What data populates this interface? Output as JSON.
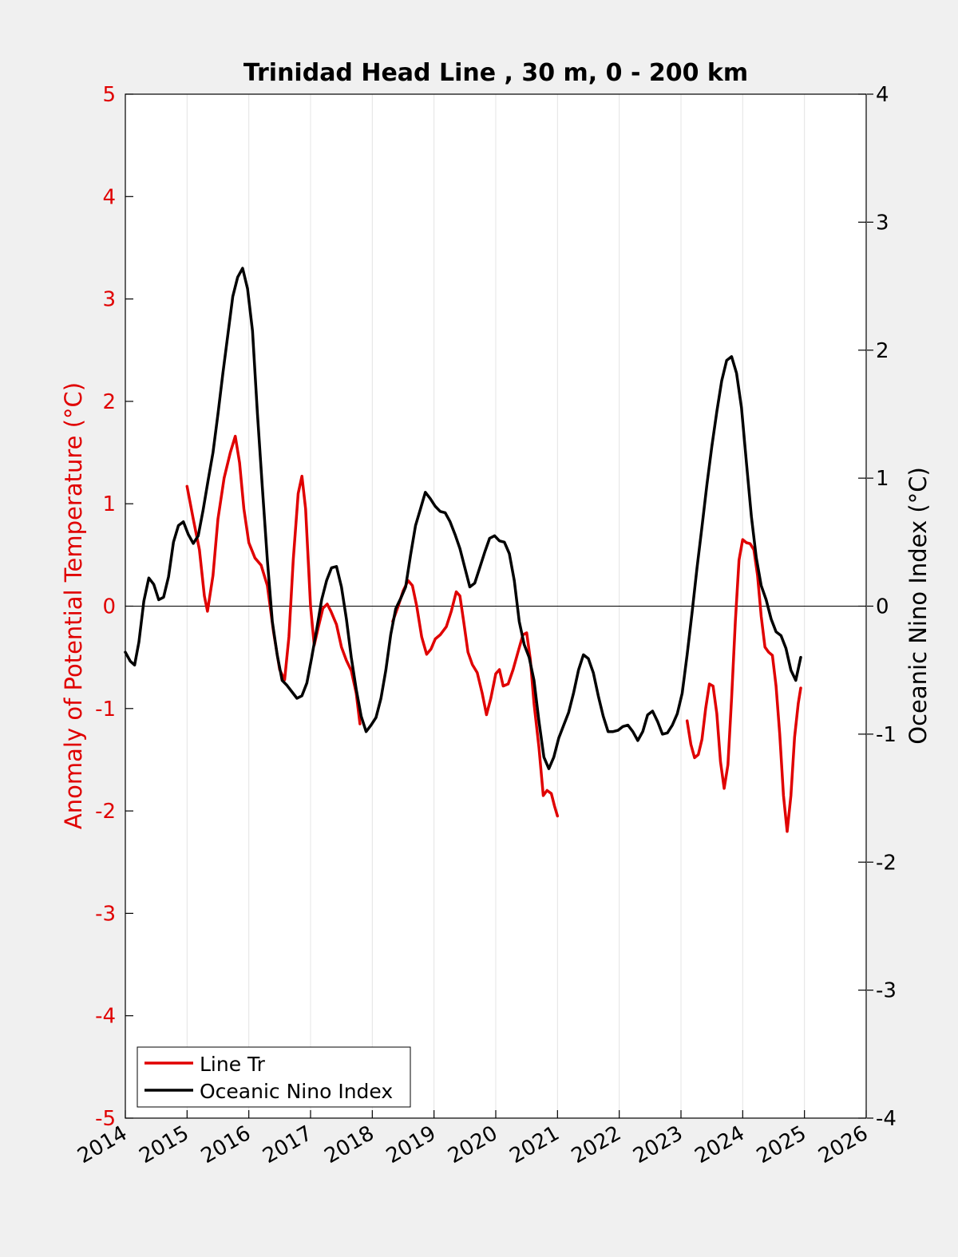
{
  "chart_data": {
    "type": "line",
    "title": "Trinidad Head Line , 30 m, 0 - 200 km",
    "xlabel": "",
    "ylabel_left": "Anomaly of Potential Temperature (°C)",
    "ylabel_right": "Oceanic Nino Index (°C)",
    "xlim": [
      2014,
      2026
    ],
    "ylim_left": [
      -5,
      5
    ],
    "ylim_right": [
      -4,
      4
    ],
    "xticks": [
      2014,
      2015,
      2016,
      2017,
      2018,
      2019,
      2020,
      2021,
      2022,
      2023,
      2024,
      2025,
      2026
    ],
    "yticks_left": [
      -5,
      -4,
      -3,
      -2,
      -1,
      0,
      1,
      2,
      3,
      4,
      5
    ],
    "yticks_right": [
      -4,
      -3,
      -2,
      -1,
      0,
      1,
      2,
      3,
      4
    ],
    "grid": "vertical",
    "zero_line": true,
    "legend_position": "bottom-left",
    "colors": {
      "left_axis": "#e00000",
      "line_tr": "#e00000",
      "oni": "#000000",
      "frame": "#000000"
    },
    "series": [
      {
        "name": "Line Tr",
        "axis": "left",
        "color": "#e00000",
        "segments": [
          [
            [
              2015.0,
              1.17
            ],
            [
              2015.1,
              0.85
            ],
            [
              2015.2,
              0.55
            ],
            [
              2015.28,
              0.1
            ],
            [
              2015.33,
              -0.05
            ],
            [
              2015.42,
              0.3
            ],
            [
              2015.5,
              0.85
            ],
            [
              2015.6,
              1.25
            ],
            [
              2015.7,
              1.5
            ],
            [
              2015.78,
              1.66
            ],
            [
              2015.85,
              1.4
            ],
            [
              2015.92,
              0.95
            ],
            [
              2016.0,
              0.62
            ],
            [
              2016.1,
              0.47
            ],
            [
              2016.2,
              0.4
            ],
            [
              2016.3,
              0.2
            ],
            [
              2016.4,
              -0.25
            ],
            [
              2016.5,
              -0.62
            ],
            [
              2016.58,
              -0.72
            ],
            [
              2016.65,
              -0.3
            ],
            [
              2016.72,
              0.45
            ],
            [
              2016.8,
              1.1
            ],
            [
              2016.86,
              1.27
            ],
            [
              2016.92,
              0.95
            ],
            [
              2017.0,
              0.0
            ],
            [
              2017.06,
              -0.38
            ],
            [
              2017.12,
              -0.22
            ],
            [
              2017.2,
              -0.02
            ],
            [
              2017.27,
              0.02
            ],
            [
              2017.33,
              -0.05
            ],
            [
              2017.42,
              -0.18
            ],
            [
              2017.5,
              -0.4
            ],
            [
              2017.58,
              -0.53
            ],
            [
              2017.66,
              -0.63
            ],
            [
              2017.74,
              -0.85
            ],
            [
              2017.8,
              -1.15
            ]
          ],
          [
            [
              2018.33,
              -0.15
            ],
            [
              2018.42,
              0.0
            ],
            [
              2018.5,
              0.15
            ],
            [
              2018.58,
              0.25
            ],
            [
              2018.65,
              0.2
            ],
            [
              2018.72,
              0.0
            ],
            [
              2018.8,
              -0.3
            ],
            [
              2018.88,
              -0.47
            ],
            [
              2018.95,
              -0.42
            ],
            [
              2019.02,
              -0.32
            ],
            [
              2019.1,
              -0.28
            ],
            [
              2019.2,
              -0.2
            ],
            [
              2019.28,
              -0.05
            ],
            [
              2019.36,
              0.14
            ],
            [
              2019.42,
              0.1
            ],
            [
              2019.48,
              -0.15
            ],
            [
              2019.55,
              -0.45
            ],
            [
              2019.62,
              -0.57
            ],
            [
              2019.7,
              -0.65
            ],
            [
              2019.78,
              -0.85
            ],
            [
              2019.85,
              -1.06
            ],
            [
              2019.92,
              -0.9
            ],
            [
              2020.0,
              -0.66
            ],
            [
              2020.06,
              -0.62
            ],
            [
              2020.12,
              -0.78
            ],
            [
              2020.2,
              -0.76
            ],
            [
              2020.28,
              -0.62
            ],
            [
              2020.36,
              -0.45
            ],
            [
              2020.44,
              -0.28
            ],
            [
              2020.5,
              -0.26
            ],
            [
              2020.56,
              -0.52
            ],
            [
              2020.62,
              -0.95
            ],
            [
              2020.7,
              -1.38
            ],
            [
              2020.77,
              -1.85
            ],
            [
              2020.83,
              -1.8
            ],
            [
              2020.9,
              -1.83
            ],
            [
              2020.95,
              -1.95
            ],
            [
              2021.0,
              -2.05
            ]
          ],
          [
            [
              2023.1,
              -1.12
            ],
            [
              2023.16,
              -1.35
            ],
            [
              2023.22,
              -1.48
            ],
            [
              2023.28,
              -1.45
            ],
            [
              2023.34,
              -1.3
            ],
            [
              2023.4,
              -1.0
            ],
            [
              2023.46,
              -0.76
            ],
            [
              2023.52,
              -0.78
            ],
            [
              2023.58,
              -1.05
            ],
            [
              2023.64,
              -1.52
            ],
            [
              2023.7,
              -1.78
            ],
            [
              2023.76,
              -1.55
            ],
            [
              2023.82,
              -0.9
            ],
            [
              2023.88,
              -0.15
            ],
            [
              2023.94,
              0.45
            ],
            [
              2024.0,
              0.65
            ],
            [
              2024.06,
              0.62
            ],
            [
              2024.12,
              0.61
            ],
            [
              2024.18,
              0.55
            ],
            [
              2024.24,
              0.3
            ],
            [
              2024.3,
              -0.1
            ],
            [
              2024.36,
              -0.4
            ],
            [
              2024.42,
              -0.45
            ],
            [
              2024.48,
              -0.48
            ],
            [
              2024.54,
              -0.78
            ],
            [
              2024.6,
              -1.25
            ],
            [
              2024.66,
              -1.85
            ],
            [
              2024.72,
              -2.2
            ],
            [
              2024.78,
              -1.85
            ],
            [
              2024.84,
              -1.28
            ],
            [
              2024.9,
              -0.95
            ],
            [
              2024.94,
              -0.8
            ]
          ]
        ]
      },
      {
        "name": "Oceanic Nino Index",
        "axis": "right",
        "color": "#000000",
        "segments": [
          [
            [
              2014.0,
              -0.36
            ],
            [
              2014.08,
              -0.43
            ],
            [
              2014.15,
              -0.46
            ],
            [
              2014.22,
              -0.28
            ],
            [
              2014.3,
              0.04
            ],
            [
              2014.38,
              0.22
            ],
            [
              2014.46,
              0.17
            ],
            [
              2014.54,
              0.05
            ],
            [
              2014.62,
              0.07
            ],
            [
              2014.7,
              0.23
            ],
            [
              2014.78,
              0.5
            ],
            [
              2014.86,
              0.63
            ],
            [
              2014.94,
              0.66
            ],
            [
              2015.02,
              0.56
            ],
            [
              2015.1,
              0.49
            ],
            [
              2015.18,
              0.55
            ],
            [
              2015.26,
              0.75
            ],
            [
              2015.34,
              0.98
            ],
            [
              2015.42,
              1.2
            ],
            [
              2015.5,
              1.5
            ],
            [
              2015.58,
              1.82
            ],
            [
              2015.66,
              2.12
            ],
            [
              2015.74,
              2.42
            ],
            [
              2015.82,
              2.57
            ],
            [
              2015.9,
              2.64
            ],
            [
              2015.98,
              2.48
            ],
            [
              2016.06,
              2.15
            ],
            [
              2016.14,
              1.5
            ],
            [
              2016.22,
              0.92
            ],
            [
              2016.3,
              0.36
            ],
            [
              2016.38,
              -0.12
            ],
            [
              2016.46,
              -0.38
            ],
            [
              2016.54,
              -0.58
            ],
            [
              2016.62,
              -0.62
            ],
            [
              2016.7,
              -0.67
            ],
            [
              2016.78,
              -0.72
            ],
            [
              2016.86,
              -0.7
            ],
            [
              2016.94,
              -0.6
            ],
            [
              2017.02,
              -0.4
            ],
            [
              2017.1,
              -0.18
            ],
            [
              2017.18,
              0.05
            ],
            [
              2017.26,
              0.2
            ],
            [
              2017.34,
              0.3
            ],
            [
              2017.42,
              0.31
            ],
            [
              2017.5,
              0.15
            ],
            [
              2017.58,
              -0.1
            ],
            [
              2017.66,
              -0.4
            ],
            [
              2017.74,
              -0.65
            ],
            [
              2017.82,
              -0.86
            ],
            [
              2017.9,
              -0.98
            ],
            [
              2017.98,
              -0.93
            ],
            [
              2018.06,
              -0.87
            ],
            [
              2018.14,
              -0.72
            ],
            [
              2018.22,
              -0.5
            ],
            [
              2018.3,
              -0.22
            ],
            [
              2018.38,
              -0.02
            ],
            [
              2018.46,
              0.06
            ],
            [
              2018.54,
              0.15
            ],
            [
              2018.62,
              0.4
            ],
            [
              2018.7,
              0.63
            ],
            [
              2018.78,
              0.76
            ],
            [
              2018.86,
              0.89
            ],
            [
              2018.94,
              0.84
            ],
            [
              2019.02,
              0.78
            ],
            [
              2019.1,
              0.74
            ],
            [
              2019.18,
              0.73
            ],
            [
              2019.26,
              0.66
            ],
            [
              2019.34,
              0.56
            ],
            [
              2019.42,
              0.45
            ],
            [
              2019.5,
              0.3
            ],
            [
              2019.58,
              0.15
            ],
            [
              2019.66,
              0.18
            ],
            [
              2019.74,
              0.3
            ],
            [
              2019.82,
              0.42
            ],
            [
              2019.9,
              0.53
            ],
            [
              2019.98,
              0.55
            ],
            [
              2020.06,
              0.51
            ],
            [
              2020.14,
              0.5
            ],
            [
              2020.22,
              0.41
            ],
            [
              2020.3,
              0.2
            ],
            [
              2020.38,
              -0.12
            ],
            [
              2020.46,
              -0.3
            ],
            [
              2020.54,
              -0.4
            ],
            [
              2020.62,
              -0.58
            ],
            [
              2020.7,
              -0.9
            ],
            [
              2020.78,
              -1.18
            ],
            [
              2020.86,
              -1.27
            ],
            [
              2020.94,
              -1.18
            ],
            [
              2021.02,
              -1.03
            ],
            [
              2021.1,
              -0.93
            ],
            [
              2021.18,
              -0.83
            ],
            [
              2021.26,
              -0.68
            ],
            [
              2021.34,
              -0.5
            ],
            [
              2021.42,
              -0.38
            ],
            [
              2021.5,
              -0.41
            ],
            [
              2021.58,
              -0.52
            ],
            [
              2021.66,
              -0.7
            ],
            [
              2021.74,
              -0.86
            ],
            [
              2021.82,
              -0.98
            ],
            [
              2021.9,
              -0.98
            ],
            [
              2021.98,
              -0.97
            ],
            [
              2022.06,
              -0.94
            ],
            [
              2022.14,
              -0.93
            ],
            [
              2022.22,
              -0.98
            ],
            [
              2022.3,
              -1.05
            ],
            [
              2022.38,
              -0.98
            ],
            [
              2022.46,
              -0.85
            ],
            [
              2022.54,
              -0.82
            ],
            [
              2022.62,
              -0.9
            ],
            [
              2022.7,
              -1.0
            ],
            [
              2022.78,
              -0.99
            ],
            [
              2022.86,
              -0.93
            ],
            [
              2022.94,
              -0.84
            ],
            [
              2023.02,
              -0.68
            ],
            [
              2023.1,
              -0.38
            ],
            [
              2023.18,
              -0.05
            ],
            [
              2023.26,
              0.3
            ],
            [
              2023.34,
              0.62
            ],
            [
              2023.42,
              0.95
            ],
            [
              2023.5,
              1.25
            ],
            [
              2023.58,
              1.52
            ],
            [
              2023.66,
              1.76
            ],
            [
              2023.74,
              1.92
            ],
            [
              2023.82,
              1.95
            ],
            [
              2023.9,
              1.82
            ],
            [
              2023.98,
              1.55
            ],
            [
              2024.06,
              1.12
            ],
            [
              2024.14,
              0.7
            ],
            [
              2024.22,
              0.38
            ],
            [
              2024.3,
              0.16
            ],
            [
              2024.38,
              0.05
            ],
            [
              2024.46,
              -0.1
            ],
            [
              2024.54,
              -0.2
            ],
            [
              2024.62,
              -0.23
            ],
            [
              2024.7,
              -0.33
            ],
            [
              2024.78,
              -0.5
            ],
            [
              2024.86,
              -0.58
            ],
            [
              2024.94,
              -0.4
            ]
          ]
        ]
      }
    ]
  }
}
